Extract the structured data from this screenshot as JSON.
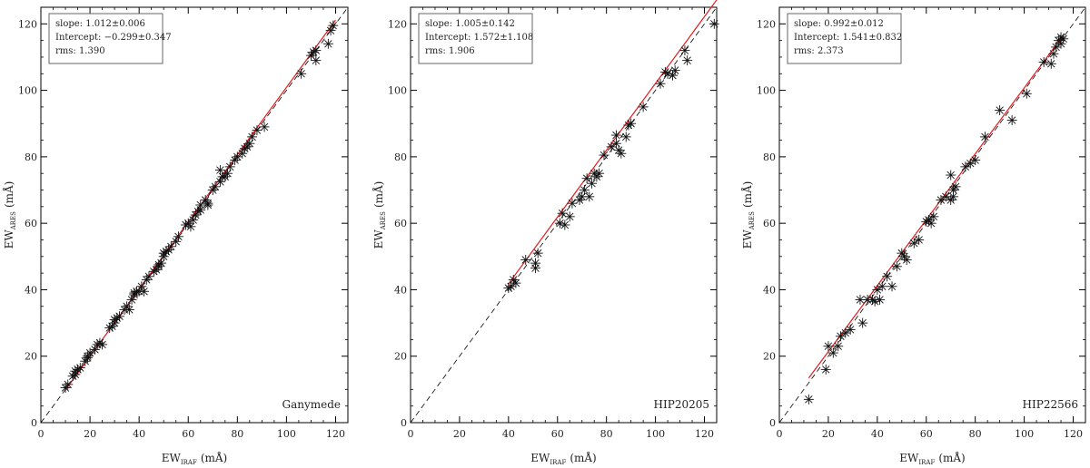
{
  "chart_data": [
    {
      "type": "scatter",
      "star": "Ganymede",
      "xlabel": {
        "main": "EW",
        "sub": "IRAF",
        "unit": "(mÅ)"
      },
      "ylabel": {
        "main": "EW",
        "sub": "ARES",
        "unit": "(mÅ)"
      },
      "xlim": [
        0,
        125
      ],
      "ylim": [
        0,
        125
      ],
      "xticks": [
        0,
        20,
        40,
        60,
        80,
        100,
        120
      ],
      "yticks": [
        0,
        20,
        40,
        60,
        80,
        100,
        120
      ],
      "stats": [
        "slope: 1.012±0.006",
        "Intercept: −0.299±0.347",
        "rms: 1.390"
      ],
      "fit": {
        "slope": 1.012,
        "intercept": -0.299,
        "x_range": [
          10,
          120
        ]
      },
      "points": [
        [
          10,
          10.5
        ],
        [
          11,
          11.5
        ],
        [
          13,
          14
        ],
        [
          14,
          14.5
        ],
        [
          14,
          15.5
        ],
        [
          15,
          16
        ],
        [
          16,
          16.5
        ],
        [
          18,
          18.5
        ],
        [
          19,
          19.5
        ],
        [
          19,
          20
        ],
        [
          20,
          21
        ],
        [
          22,
          22
        ],
        [
          23,
          23.5
        ],
        [
          24,
          24
        ],
        [
          25,
          23.5
        ],
        [
          28,
          28.5
        ],
        [
          29,
          29
        ],
        [
          30,
          30
        ],
        [
          30,
          31
        ],
        [
          31,
          31.5
        ],
        [
          32,
          32
        ],
        [
          34,
          34
        ],
        [
          35,
          35
        ],
        [
          36,
          34
        ],
        [
          37,
          37
        ],
        [
          38,
          38.5
        ],
        [
          38,
          39
        ],
        [
          39,
          39.5
        ],
        [
          40,
          39.5
        ],
        [
          41,
          41
        ],
        [
          42,
          39.5
        ],
        [
          43,
          43
        ],
        [
          44,
          44
        ],
        [
          46,
          45.5
        ],
        [
          47,
          46
        ],
        [
          48,
          47
        ],
        [
          48,
          47.5
        ],
        [
          49,
          48
        ],
        [
          50,
          50
        ],
        [
          50,
          51
        ],
        [
          51,
          51.5
        ],
        [
          52,
          52
        ],
        [
          53,
          53
        ],
        [
          55,
          54.5
        ],
        [
          56,
          56
        ],
        [
          59,
          59.5
        ],
        [
          60,
          60
        ],
        [
          61,
          59
        ],
        [
          62,
          61
        ],
        [
          63,
          62.5
        ],
        [
          64,
          63.5
        ],
        [
          65,
          64
        ],
        [
          65,
          65.5
        ],
        [
          67,
          67
        ],
        [
          68,
          66
        ],
        [
          68,
          65.5
        ],
        [
          70,
          70
        ],
        [
          71,
          71
        ],
        [
          73,
          72.5
        ],
        [
          73,
          76
        ],
        [
          74,
          74
        ],
        [
          75,
          74
        ],
        [
          76,
          75
        ],
        [
          77,
          77
        ],
        [
          79,
          79
        ],
        [
          80,
          80
        ],
        [
          82,
          81
        ],
        [
          83,
          82.5
        ],
        [
          84,
          83
        ],
        [
          85,
          84
        ],
        [
          86,
          86
        ],
        [
          88,
          88
        ],
        [
          91,
          89
        ],
        [
          106,
          105
        ],
        [
          110,
          110.5
        ],
        [
          111,
          111.5
        ],
        [
          112,
          112
        ],
        [
          112,
          109
        ],
        [
          117,
          114
        ],
        [
          118,
          118
        ],
        [
          119,
          119.5
        ]
      ]
    },
    {
      "type": "scatter",
      "star": "HIP20205",
      "xlabel": {
        "main": "EW",
        "sub": "IRAF",
        "unit": "(mÅ)"
      },
      "ylabel": {
        "main": "EW",
        "sub": "ARES",
        "unit": "(mÅ)"
      },
      "xlim": [
        0,
        125
      ],
      "ylim": [
        0,
        125
      ],
      "xticks": [
        0,
        20,
        40,
        60,
        80,
        100,
        120
      ],
      "yticks": [
        0,
        20,
        40,
        60,
        80,
        100,
        120
      ],
      "stats": [
        "slope: 1.005±0.142",
        "Intercept: 1.572±1.108",
        "rms: 1.906"
      ],
      "fit": {
        "slope": 1.005,
        "intercept": 1.572,
        "x_range": [
          40,
          125
        ]
      },
      "points": [
        [
          40,
          40.5
        ],
        [
          41,
          41
        ],
        [
          42,
          43
        ],
        [
          43,
          42
        ],
        [
          47,
          49
        ],
        [
          51,
          48
        ],
        [
          51,
          46.5
        ],
        [
          52,
          51
        ],
        [
          61,
          60
        ],
        [
          62,
          63
        ],
        [
          63,
          59.5
        ],
        [
          65,
          62
        ],
        [
          66,
          66
        ],
        [
          69,
          67
        ],
        [
          70,
          68
        ],
        [
          71,
          70
        ],
        [
          72,
          73.5
        ],
        [
          73,
          68
        ],
        [
          74,
          72
        ],
        [
          75,
          75
        ],
        [
          76,
          74
        ],
        [
          77,
          75
        ],
        [
          79,
          80.5
        ],
        [
          82,
          83
        ],
        [
          84,
          86.5
        ],
        [
          84,
          84
        ],
        [
          85,
          82
        ],
        [
          86,
          81
        ],
        [
          88,
          86
        ],
        [
          89,
          89.5
        ],
        [
          90,
          90
        ],
        [
          95,
          95
        ],
        [
          102,
          102
        ],
        [
          104,
          105.5
        ],
        [
          105,
          105
        ],
        [
          107,
          104.5
        ],
        [
          108,
          106
        ],
        [
          112,
          112
        ],
        [
          113,
          109
        ],
        [
          124,
          120
        ]
      ]
    },
    {
      "type": "scatter",
      "star": "HIP22566",
      "xlabel": {
        "main": "EW",
        "sub": "IRAF",
        "unit": "(mÅ)"
      },
      "ylabel": {
        "main": "EW",
        "sub": "ARES",
        "unit": "(mÅ)"
      },
      "xlim": [
        0,
        125
      ],
      "ylim": [
        0,
        125
      ],
      "xticks": [
        0,
        20,
        40,
        60,
        80,
        100,
        120
      ],
      "yticks": [
        0,
        20,
        40,
        60,
        80,
        100,
        120
      ],
      "stats": [
        "slope: 0.992±0.012",
        "Intercept: 1.541±0.832",
        "rms: 2.373"
      ],
      "fit": {
        "slope": 0.992,
        "intercept": 1.541,
        "x_range": [
          12,
          116
        ]
      },
      "points": [
        [
          12,
          7
        ],
        [
          19,
          16
        ],
        [
          20,
          23
        ],
        [
          22,
          21
        ],
        [
          24,
          23
        ],
        [
          25,
          26
        ],
        [
          27,
          27
        ],
        [
          29,
          28
        ],
        [
          33,
          37
        ],
        [
          34,
          30
        ],
        [
          36,
          37
        ],
        [
          38,
          37
        ],
        [
          39,
          36.5
        ],
        [
          40,
          40
        ],
        [
          41,
          37
        ],
        [
          42,
          41
        ],
        [
          44,
          44
        ],
        [
          46,
          41
        ],
        [
          48,
          47
        ],
        [
          50,
          51
        ],
        [
          51,
          50
        ],
        [
          52,
          49
        ],
        [
          55,
          54
        ],
        [
          57,
          55
        ],
        [
          60,
          60.5
        ],
        [
          61,
          61
        ],
        [
          62,
          60
        ],
        [
          63,
          62
        ],
        [
          66,
          67
        ],
        [
          68,
          68
        ],
        [
          70,
          74.5
        ],
        [
          70,
          67
        ],
        [
          71,
          68
        ],
        [
          71,
          70
        ],
        [
          72,
          71
        ],
        [
          76,
          77
        ],
        [
          78,
          78
        ],
        [
          80,
          79
        ],
        [
          84,
          86
        ],
        [
          90,
          94
        ],
        [
          95,
          91
        ],
        [
          101,
          99
        ],
        [
          108,
          108.5
        ],
        [
          111,
          108
        ],
        [
          112,
          111
        ],
        [
          113,
          113
        ],
        [
          114,
          115
        ],
        [
          115,
          114
        ],
        [
          115,
          116
        ],
        [
          116,
          115.5
        ]
      ]
    }
  ]
}
